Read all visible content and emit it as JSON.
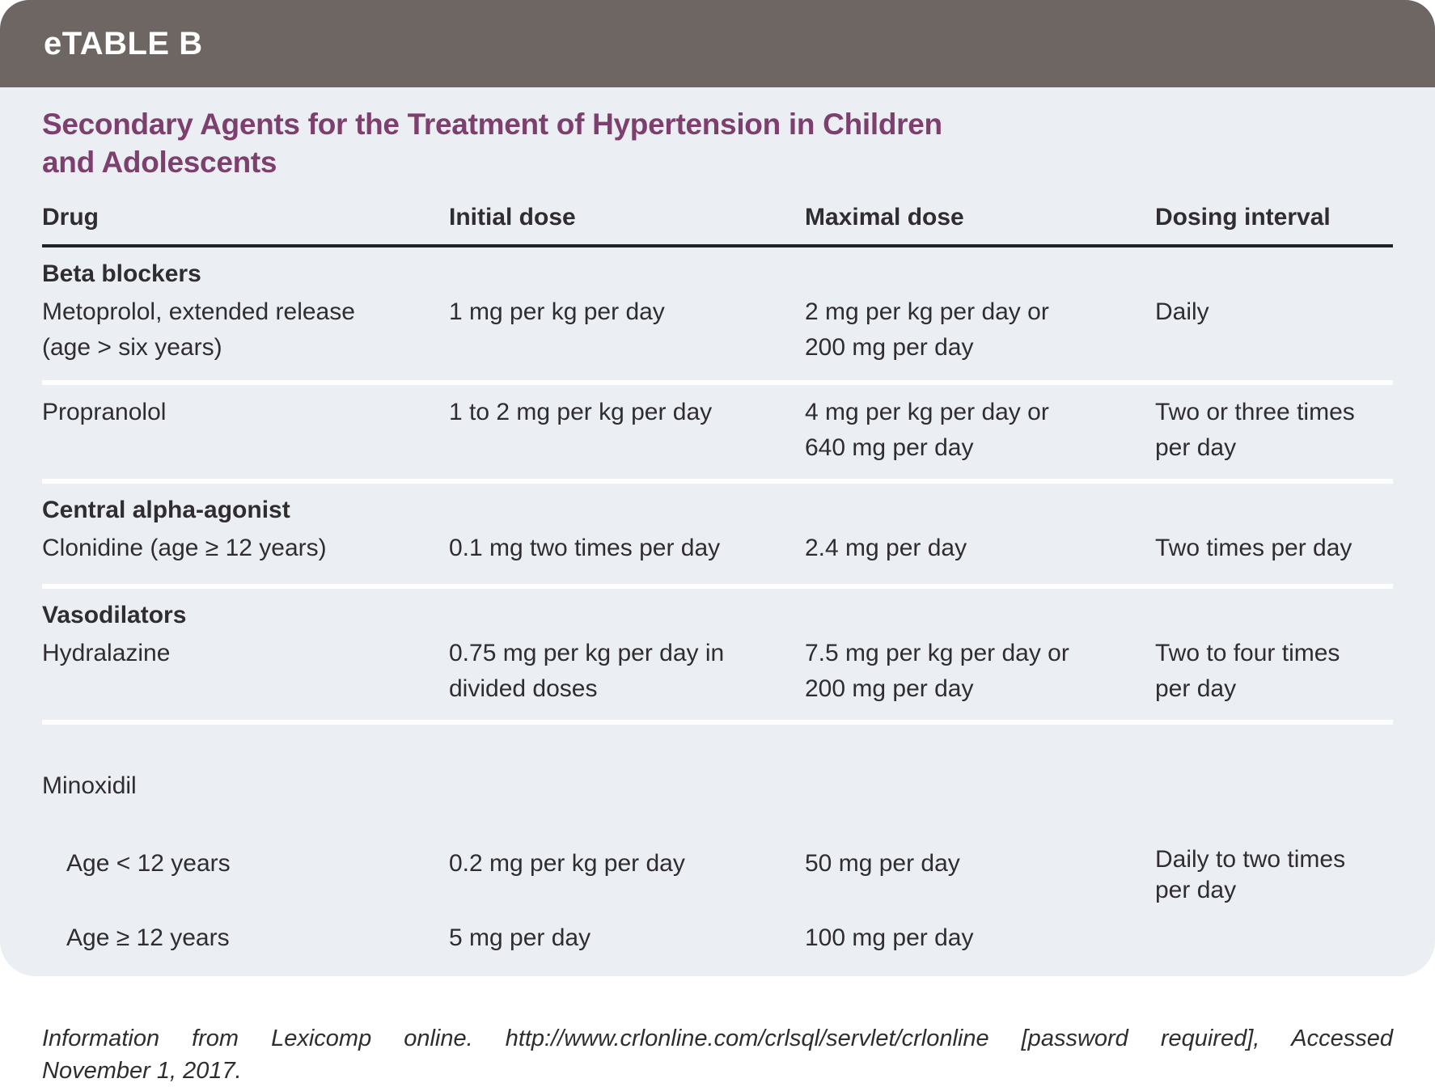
{
  "banner": {
    "label": "eTABLE B"
  },
  "table": {
    "title": "Secondary Agents for the Treatment of Hypertension in Children\nand Adolescents",
    "columns": [
      "Drug",
      "Initial dose",
      "Maximal dose",
      "Dosing interval"
    ],
    "sections": [
      {
        "header": "Beta blockers",
        "rows": [
          {
            "drug": "Metoprolol, extended release\n(age > six years)",
            "initial": "1 mg per kg per day",
            "maximal": "2 mg per kg per day or\n200 mg per day",
            "interval": "Daily"
          },
          {
            "drug": "Propranolol",
            "initial": "1 to 2 mg per kg per day",
            "maximal": "4 mg per kg per day or\n640 mg per day",
            "interval": "Two or three times\nper day"
          }
        ]
      },
      {
        "header": "Central alpha-agonist",
        "rows": [
          {
            "drug": "Clonidine (age ≥ 12 years)",
            "initial": "0.1 mg two times per day",
            "maximal": "2.4 mg per day",
            "interval": "Two times per day"
          }
        ]
      },
      {
        "header": "Vasodilators",
        "rows": [
          {
            "drug": "Hydralazine",
            "initial": "0.75 mg per kg per day in\ndivided doses",
            "maximal": "7.5 mg per kg per day or\n200 mg per day",
            "interval": "Two to four times\nper day"
          }
        ],
        "group_row": {
          "drug": "Minoxidil",
          "interval": "Daily to two times\nper day",
          "subrows": [
            {
              "drug": "Age < 12 years",
              "initial": "0.2 mg per kg per day",
              "maximal": "50 mg per day"
            },
            {
              "drug": "Age ≥ 12 years",
              "initial": "5 mg per day",
              "maximal": "100 mg per day"
            }
          ]
        }
      }
    ]
  },
  "footnote": {
    "line1": "Information from Lexicomp online. http://www.crlonline.com/crlsql/servlet/crlonline [password required], Accessed",
    "line2": "November 1, 2017."
  },
  "colors": {
    "banner_bg": "#6e6662",
    "title_text": "#7d3f6d",
    "body_bg": "#ebeef3",
    "body_text": "#2f2d30",
    "header_rule": "#242122",
    "row_separator": "#ffffff"
  }
}
